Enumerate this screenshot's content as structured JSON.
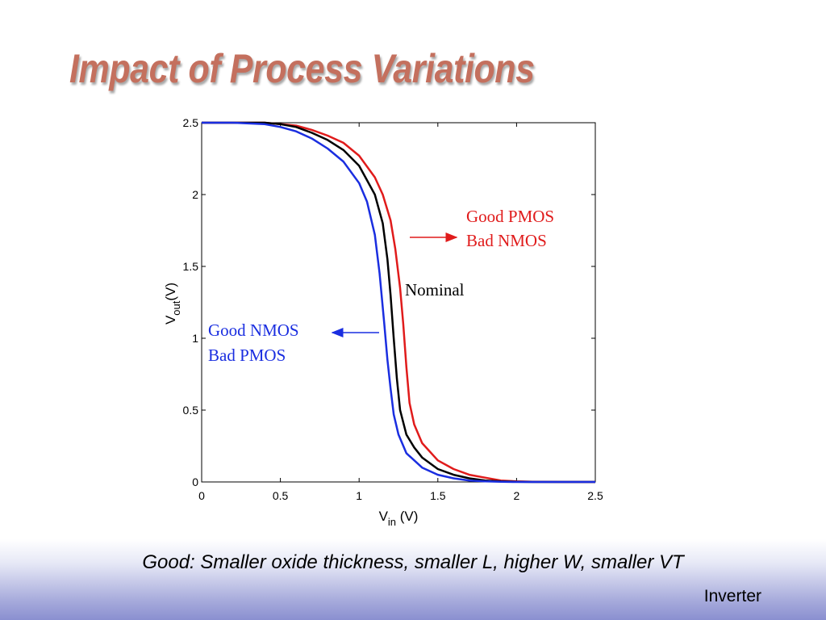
{
  "slide": {
    "title": "Impact of Process Variations",
    "subtitle": "Good: Smaller oxide thickness, smaller L, higher W, smaller VT",
    "footer": "Inverter"
  },
  "colors": {
    "title": "#c4705e",
    "good_pmos": "#e01b1b",
    "nominal": "#000000",
    "good_nmos": "#1a2ee0"
  },
  "chart_data": {
    "type": "line",
    "xlabel": {
      "main": "V",
      "sub": "in",
      "unit": " (V)"
    },
    "ylabel": {
      "main": "V",
      "sub": "out",
      "unit": "(V)"
    },
    "xlim": [
      0,
      2.5
    ],
    "ylim": [
      0,
      2.5
    ],
    "xticks": [
      {
        "value": 0,
        "label": "0"
      },
      {
        "value": 0.5,
        "label": "0.5"
      },
      {
        "value": 1,
        "label": "1"
      },
      {
        "value": 1.5,
        "label": "1.5"
      },
      {
        "value": 2,
        "label": "2"
      },
      {
        "value": 2.5,
        "label": "2.5"
      }
    ],
    "yticks": [
      {
        "value": 0,
        "label": "0"
      },
      {
        "value": 0.5,
        "label": "0.5"
      },
      {
        "value": 1,
        "label": "1"
      },
      {
        "value": 1.5,
        "label": "1.5"
      },
      {
        "value": 2,
        "label": "2"
      },
      {
        "value": 2.5,
        "label": "2.5"
      }
    ],
    "grid": false,
    "series": [
      {
        "key": "good_pmos",
        "color": "#e01b1b",
        "x": [
          0,
          0.2,
          0.4,
          0.5,
          0.6,
          0.7,
          0.8,
          0.9,
          1.0,
          1.1,
          1.15,
          1.2,
          1.23,
          1.26,
          1.28,
          1.3,
          1.32,
          1.35,
          1.4,
          1.5,
          1.6,
          1.7,
          1.8,
          1.9,
          2.0,
          2.1,
          2.3,
          2.5
        ],
        "y": [
          2.5,
          2.5,
          2.5,
          2.49,
          2.48,
          2.45,
          2.41,
          2.36,
          2.27,
          2.12,
          2.0,
          1.82,
          1.62,
          1.35,
          1.1,
          0.8,
          0.55,
          0.4,
          0.27,
          0.15,
          0.09,
          0.05,
          0.03,
          0.01,
          0.004,
          0.001,
          0,
          0
        ]
      },
      {
        "key": "nominal",
        "color": "#000000",
        "x": [
          0,
          0.2,
          0.4,
          0.5,
          0.6,
          0.7,
          0.8,
          0.9,
          1.0,
          1.1,
          1.15,
          1.18,
          1.2,
          1.22,
          1.24,
          1.26,
          1.3,
          1.35,
          1.4,
          1.5,
          1.6,
          1.7,
          1.8,
          1.9,
          2.0,
          2.1,
          2.3,
          2.5
        ],
        "y": [
          2.5,
          2.5,
          2.5,
          2.49,
          2.47,
          2.43,
          2.38,
          2.31,
          2.2,
          2.0,
          1.8,
          1.55,
          1.3,
          1.0,
          0.72,
          0.5,
          0.33,
          0.24,
          0.17,
          0.09,
          0.05,
          0.025,
          0.01,
          0.004,
          0.001,
          0,
          0,
          0
        ]
      },
      {
        "key": "good_nmos",
        "color": "#1a2ee0",
        "x": [
          0,
          0.2,
          0.4,
          0.5,
          0.6,
          0.7,
          0.8,
          0.9,
          1.0,
          1.05,
          1.1,
          1.13,
          1.16,
          1.18,
          1.2,
          1.22,
          1.25,
          1.3,
          1.4,
          1.5,
          1.6,
          1.7,
          1.8,
          1.9,
          2.0,
          2.1,
          2.3,
          2.5
        ],
        "y": [
          2.5,
          2.5,
          2.49,
          2.47,
          2.44,
          2.39,
          2.32,
          2.23,
          2.08,
          1.95,
          1.72,
          1.45,
          1.1,
          0.85,
          0.65,
          0.47,
          0.33,
          0.2,
          0.1,
          0.05,
          0.025,
          0.01,
          0.004,
          0.001,
          0,
          0,
          0,
          0
        ]
      }
    ],
    "annotations": [
      {
        "key": "good_pmos",
        "lines": [
          "Good PMOS",
          "Bad NMOS"
        ],
        "color": "#e01b1b",
        "arrow": "right"
      },
      {
        "key": "nominal",
        "lines": [
          "Nominal"
        ],
        "color": "#000000",
        "arrow": "none"
      },
      {
        "key": "good_nmos",
        "lines": [
          "Good NMOS",
          "Bad PMOS"
        ],
        "color": "#1a2ee0",
        "arrow": "left"
      }
    ]
  }
}
